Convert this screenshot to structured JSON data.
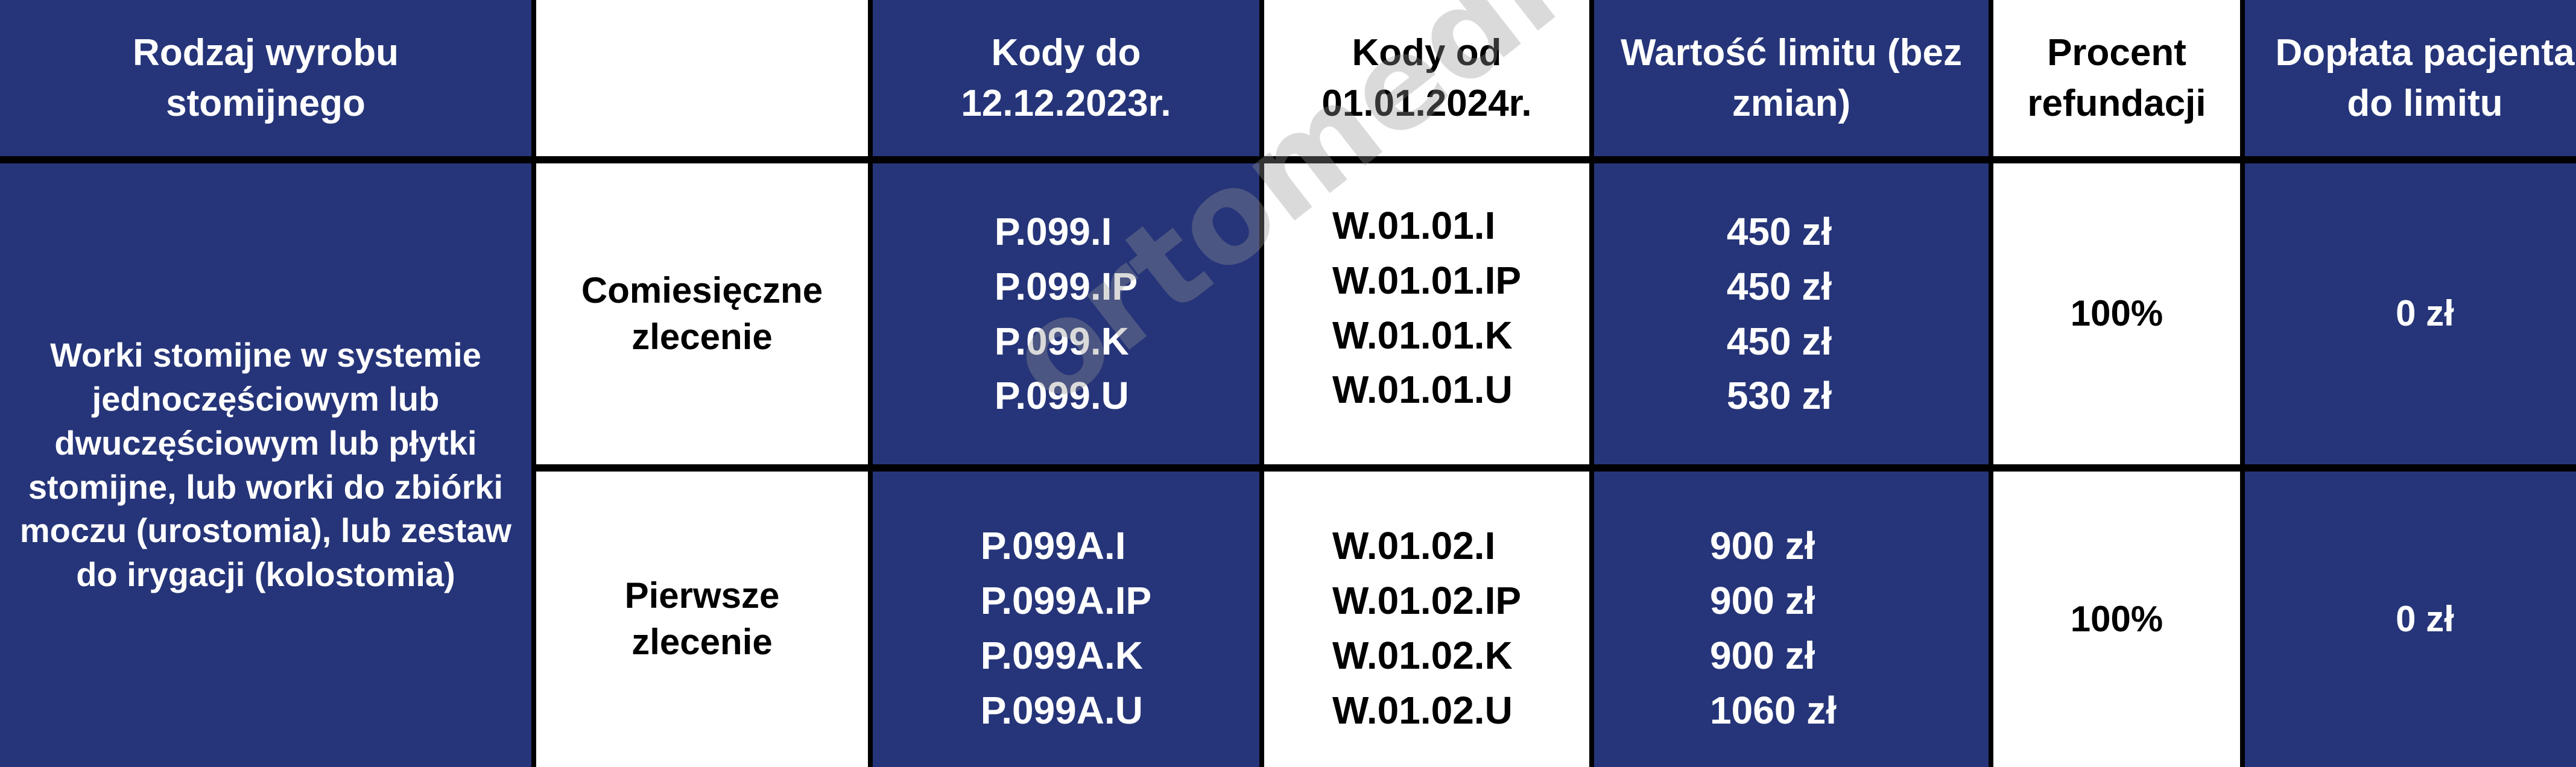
{
  "colors": {
    "blue": "#263579",
    "white": "#ffffff",
    "border": "#000000"
  },
  "headers": [
    "Rodzaj wyrobu stomijnego",
    "",
    "Kody do 12.12.2023r.",
    "Kody od 01.01.2024r.",
    "Wartość limitu (bez zmian)",
    "Procent refundacji",
    "Dopłata pacjenta do limitu"
  ],
  "product_type": "Worki stomijne w systemie jednoczęściowym lub dwuczęściowym lub płytki stomijne, lub worki do zbiórki moczu (urostomia), lub zestaw do irygacji (kolostomia)",
  "rows": [
    {
      "order": "Comiesięczne zlecenie",
      "old_codes": [
        "P.099.I",
        "P.099.IP",
        "P.099.K",
        "P.099.U"
      ],
      "new_codes": [
        "W.01.01.I",
        "W.01.01.IP",
        "W.01.01.K",
        "W.01.01.U"
      ],
      "limits": [
        "450 zł",
        "450 zł",
        "450 zł",
        "530 zł"
      ],
      "percent": "100%",
      "copay": "0 zł"
    },
    {
      "order": "Pierwsze zlecenie",
      "old_codes": [
        "P.099A.I",
        "P.099A.IP",
        "P.099A.K",
        "P.099A.U"
      ],
      "new_codes": [
        "W.01.02.I",
        "W.01.02.IP",
        "W.01.02.K",
        "W.01.02.U"
      ],
      "limits": [
        "900 zł",
        "900 zł",
        "900 zł",
        "1060 zł"
      ],
      "percent": "100%",
      "copay": "0 zł"
    }
  ],
  "watermark": "ortomedica.pl"
}
